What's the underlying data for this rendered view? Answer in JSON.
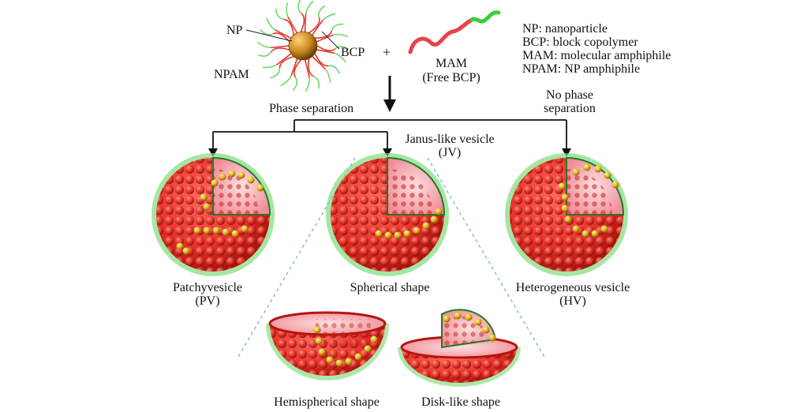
{
  "legend": {
    "np": "NP: nanoparticle",
    "bcp": "BCP: block copolymer",
    "mam": "MAM: molecular amphiphile",
    "npam": "NPAM: NP amphiphile"
  },
  "top": {
    "np_label": "NP",
    "bcp_label": "BCP",
    "npam_label": "NPAM",
    "plus": "+",
    "mam_label": "MAM",
    "free_bcp": "(Free BCP)"
  },
  "branches": {
    "phase_separation": "Phase separation",
    "no_phase_line1": "No phase",
    "no_phase_line2": "separation",
    "janus_line1": "Janus-like vesicle",
    "janus_line2": "(JV)"
  },
  "vesicles": {
    "pv_line1": "Patchyvesicle",
    "pv_line2": "(PV)",
    "spherical": "Spherical shape",
    "hv_line1": "Heterogeneous vesicle",
    "hv_line2": "(HV)",
    "hemispherical": "Hemispherical shape",
    "disk": "Disk-like shape"
  },
  "colors": {
    "shell": "#e8322a",
    "shell_dark": "#b5150f",
    "corona": "#6fd66b",
    "gold": "#e0b21a",
    "core": "#c98a1f",
    "inner_pink": "#f3a3a8",
    "guide": "#7aa6d8"
  }
}
